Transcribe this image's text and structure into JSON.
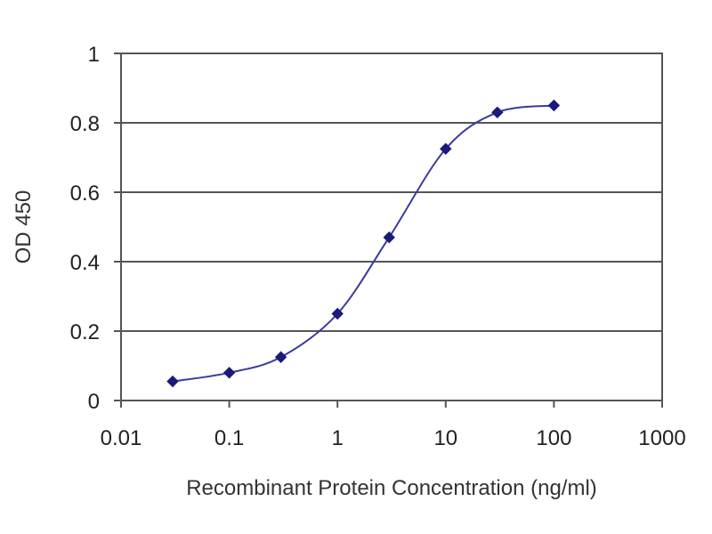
{
  "chart_data": {
    "type": "scatter",
    "title": "",
    "xlabel": "Recombinant Protein Concentration (ng/ml)",
    "ylabel": "OD 450",
    "x_scale": "log",
    "xlim": [
      0.01,
      1000
    ],
    "ylim": [
      0,
      1
    ],
    "x_ticks": [
      "0.01",
      "0.1",
      "1",
      "10",
      "100",
      "1000"
    ],
    "y_ticks": [
      "0",
      "0.2",
      "0.4",
      "0.6",
      "0.8",
      "1"
    ],
    "grid": "horizontal",
    "legend": "none",
    "series": [
      {
        "x": [
          0.03,
          0.1,
          0.3,
          1,
          3,
          10,
          30,
          100
        ],
        "y": [
          0.055,
          0.08,
          0.125,
          0.25,
          0.47,
          0.725,
          0.83,
          0.85
        ],
        "style": "markers with smooth fitted line"
      }
    ],
    "colors": {
      "series": "#1a1a7a",
      "curve": "#3a3aa0",
      "grid": "#555555",
      "frame": "#555555"
    }
  }
}
